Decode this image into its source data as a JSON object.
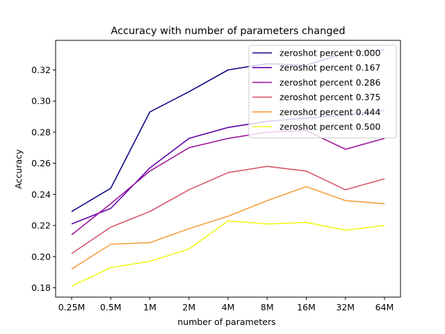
{
  "chart_data": {
    "type": "line",
    "title": "Accuracy with number of parameters changed",
    "xlabel": "number of parameters",
    "ylabel": "Accuracy",
    "categories": [
      "0.25M",
      "0.5M",
      "1M",
      "2M",
      "4M",
      "8M",
      "16M",
      "32M",
      "64M"
    ],
    "ylim": [
      0.174,
      0.339
    ],
    "yticks": [
      "0.18",
      "0.20",
      "0.22",
      "0.24",
      "0.26",
      "0.28",
      "0.30",
      "0.32"
    ],
    "grid": false,
    "legend_position": "top-right",
    "series": [
      {
        "name": "zeroshot percent 0.000",
        "color": "#0d0887",
        "values": [
          0.229,
          0.244,
          0.293,
          0.306,
          0.32,
          0.324,
          0.323,
          0.331,
          0.333
        ]
      },
      {
        "name": "zeroshot percent 0.167",
        "color": "#5c01a6",
        "values": [
          0.221,
          0.231,
          0.257,
          0.276,
          0.283,
          0.287,
          0.289,
          0.291,
          0.294
        ]
      },
      {
        "name": "zeroshot percent 0.286",
        "color": "#9c179e",
        "values": [
          0.214,
          0.234,
          0.255,
          0.27,
          0.276,
          0.28,
          0.281,
          0.269,
          0.276
        ]
      },
      {
        "name": "zeroshot percent 0.375",
        "color": "#d8576b",
        "values": [
          0.202,
          0.219,
          0.229,
          0.243,
          0.254,
          0.258,
          0.255,
          0.243,
          0.25
        ]
      },
      {
        "name": "zeroshot percent 0.444",
        "color": "#f79d3e",
        "values": [
          0.192,
          0.208,
          0.209,
          0.218,
          0.226,
          0.236,
          0.245,
          0.236,
          0.234
        ]
      },
      {
        "name": "zeroshot percent 0.500",
        "color": "#f0f921",
        "values": [
          0.181,
          0.193,
          0.197,
          0.205,
          0.223,
          0.221,
          0.222,
          0.217,
          0.22
        ]
      }
    ]
  }
}
